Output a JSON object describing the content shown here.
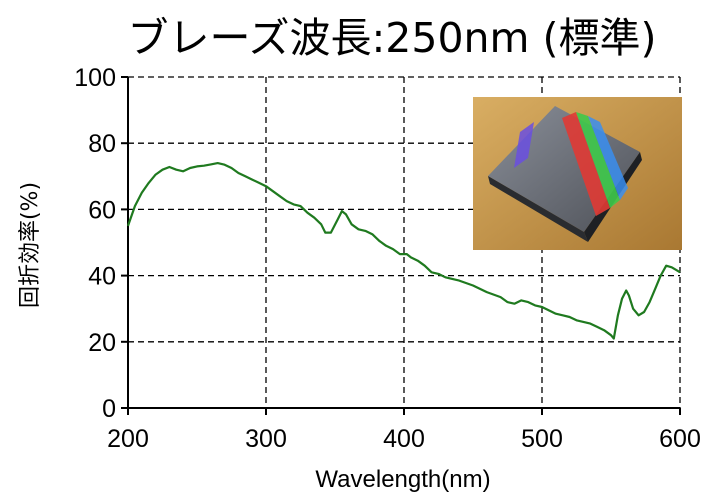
{
  "chart_data": {
    "type": "line",
    "title": "ブレーズ波長:250nm (標準)",
    "xlabel": "Wavelength(nm)",
    "ylabel": "回折効率(%)",
    "xlim": [
      200,
      600
    ],
    "ylim": [
      0,
      100
    ],
    "x_ticks": [
      "200",
      "300",
      "400",
      "500",
      "600"
    ],
    "y_ticks": [
      "0",
      "20",
      "40",
      "60",
      "80",
      "100"
    ],
    "grid": true,
    "series": [
      {
        "color": "#1f7a1f",
        "points": [
          [
            200,
            55
          ],
          [
            205,
            61
          ],
          [
            210,
            65
          ],
          [
            215,
            68
          ],
          [
            220,
            70.5
          ],
          [
            225,
            72
          ],
          [
            230,
            72.8
          ],
          [
            235,
            72
          ],
          [
            240,
            71.5
          ],
          [
            245,
            72.5
          ],
          [
            250,
            73
          ],
          [
            255,
            73.2
          ],
          [
            260,
            73.6
          ],
          [
            265,
            74
          ],
          [
            270,
            73.5
          ],
          [
            275,
            72.5
          ],
          [
            280,
            71
          ],
          [
            285,
            70
          ],
          [
            290,
            69
          ],
          [
            295,
            68
          ],
          [
            300,
            67
          ],
          [
            305,
            65.5
          ],
          [
            310,
            64
          ],
          [
            315,
            62.5
          ],
          [
            320,
            61.5
          ],
          [
            325,
            61
          ],
          [
            330,
            59
          ],
          [
            335,
            57.5
          ],
          [
            340,
            55.5
          ],
          [
            343,
            53
          ],
          [
            347,
            53
          ],
          [
            352,
            57
          ],
          [
            355,
            59.5
          ],
          [
            358,
            58.5
          ],
          [
            362,
            55.5
          ],
          [
            367,
            54
          ],
          [
            372,
            53.5
          ],
          [
            377,
            52.5
          ],
          [
            382,
            50.5
          ],
          [
            387,
            49
          ],
          [
            392,
            48
          ],
          [
            397,
            46.5
          ],
          [
            402,
            46.5
          ],
          [
            405,
            45.5
          ],
          [
            410,
            44.5
          ],
          [
            415,
            43
          ],
          [
            420,
            41
          ],
          [
            425,
            40.5
          ],
          [
            430,
            39.5
          ],
          [
            440,
            38.5
          ],
          [
            450,
            37
          ],
          [
            460,
            35
          ],
          [
            470,
            33.5
          ],
          [
            475,
            32
          ],
          [
            480,
            31.5
          ],
          [
            485,
            32.5
          ],
          [
            490,
            32
          ],
          [
            495,
            31
          ],
          [
            500,
            30.5
          ],
          [
            505,
            29.5
          ],
          [
            510,
            28.5
          ],
          [
            515,
            28
          ],
          [
            520,
            27.5
          ],
          [
            525,
            26.5
          ],
          [
            530,
            26
          ],
          [
            535,
            25.5
          ],
          [
            540,
            24.5
          ],
          [
            545,
            23.5
          ],
          [
            550,
            22
          ],
          [
            552,
            21
          ],
          [
            555,
            28
          ],
          [
            558,
            33
          ],
          [
            561,
            35.5
          ],
          [
            563,
            34
          ],
          [
            566,
            30
          ],
          [
            570,
            28
          ],
          [
            574,
            29
          ],
          [
            578,
            32
          ],
          [
            582,
            36
          ],
          [
            586,
            40
          ],
          [
            590,
            43
          ],
          [
            594,
            42.5
          ],
          [
            598,
            41.5
          ],
          [
            600,
            41
          ]
        ]
      }
    ]
  },
  "photo": {
    "background": "#c99a52",
    "prism_top": "#6b6f78",
    "prism_side": "#2a2c30",
    "rainbow": [
      "#d94dd4",
      "#e03a34",
      "#f28f2a",
      "#f2e43a",
      "#3ec94a",
      "#3a8ef0",
      "#5a4fe0"
    ]
  }
}
